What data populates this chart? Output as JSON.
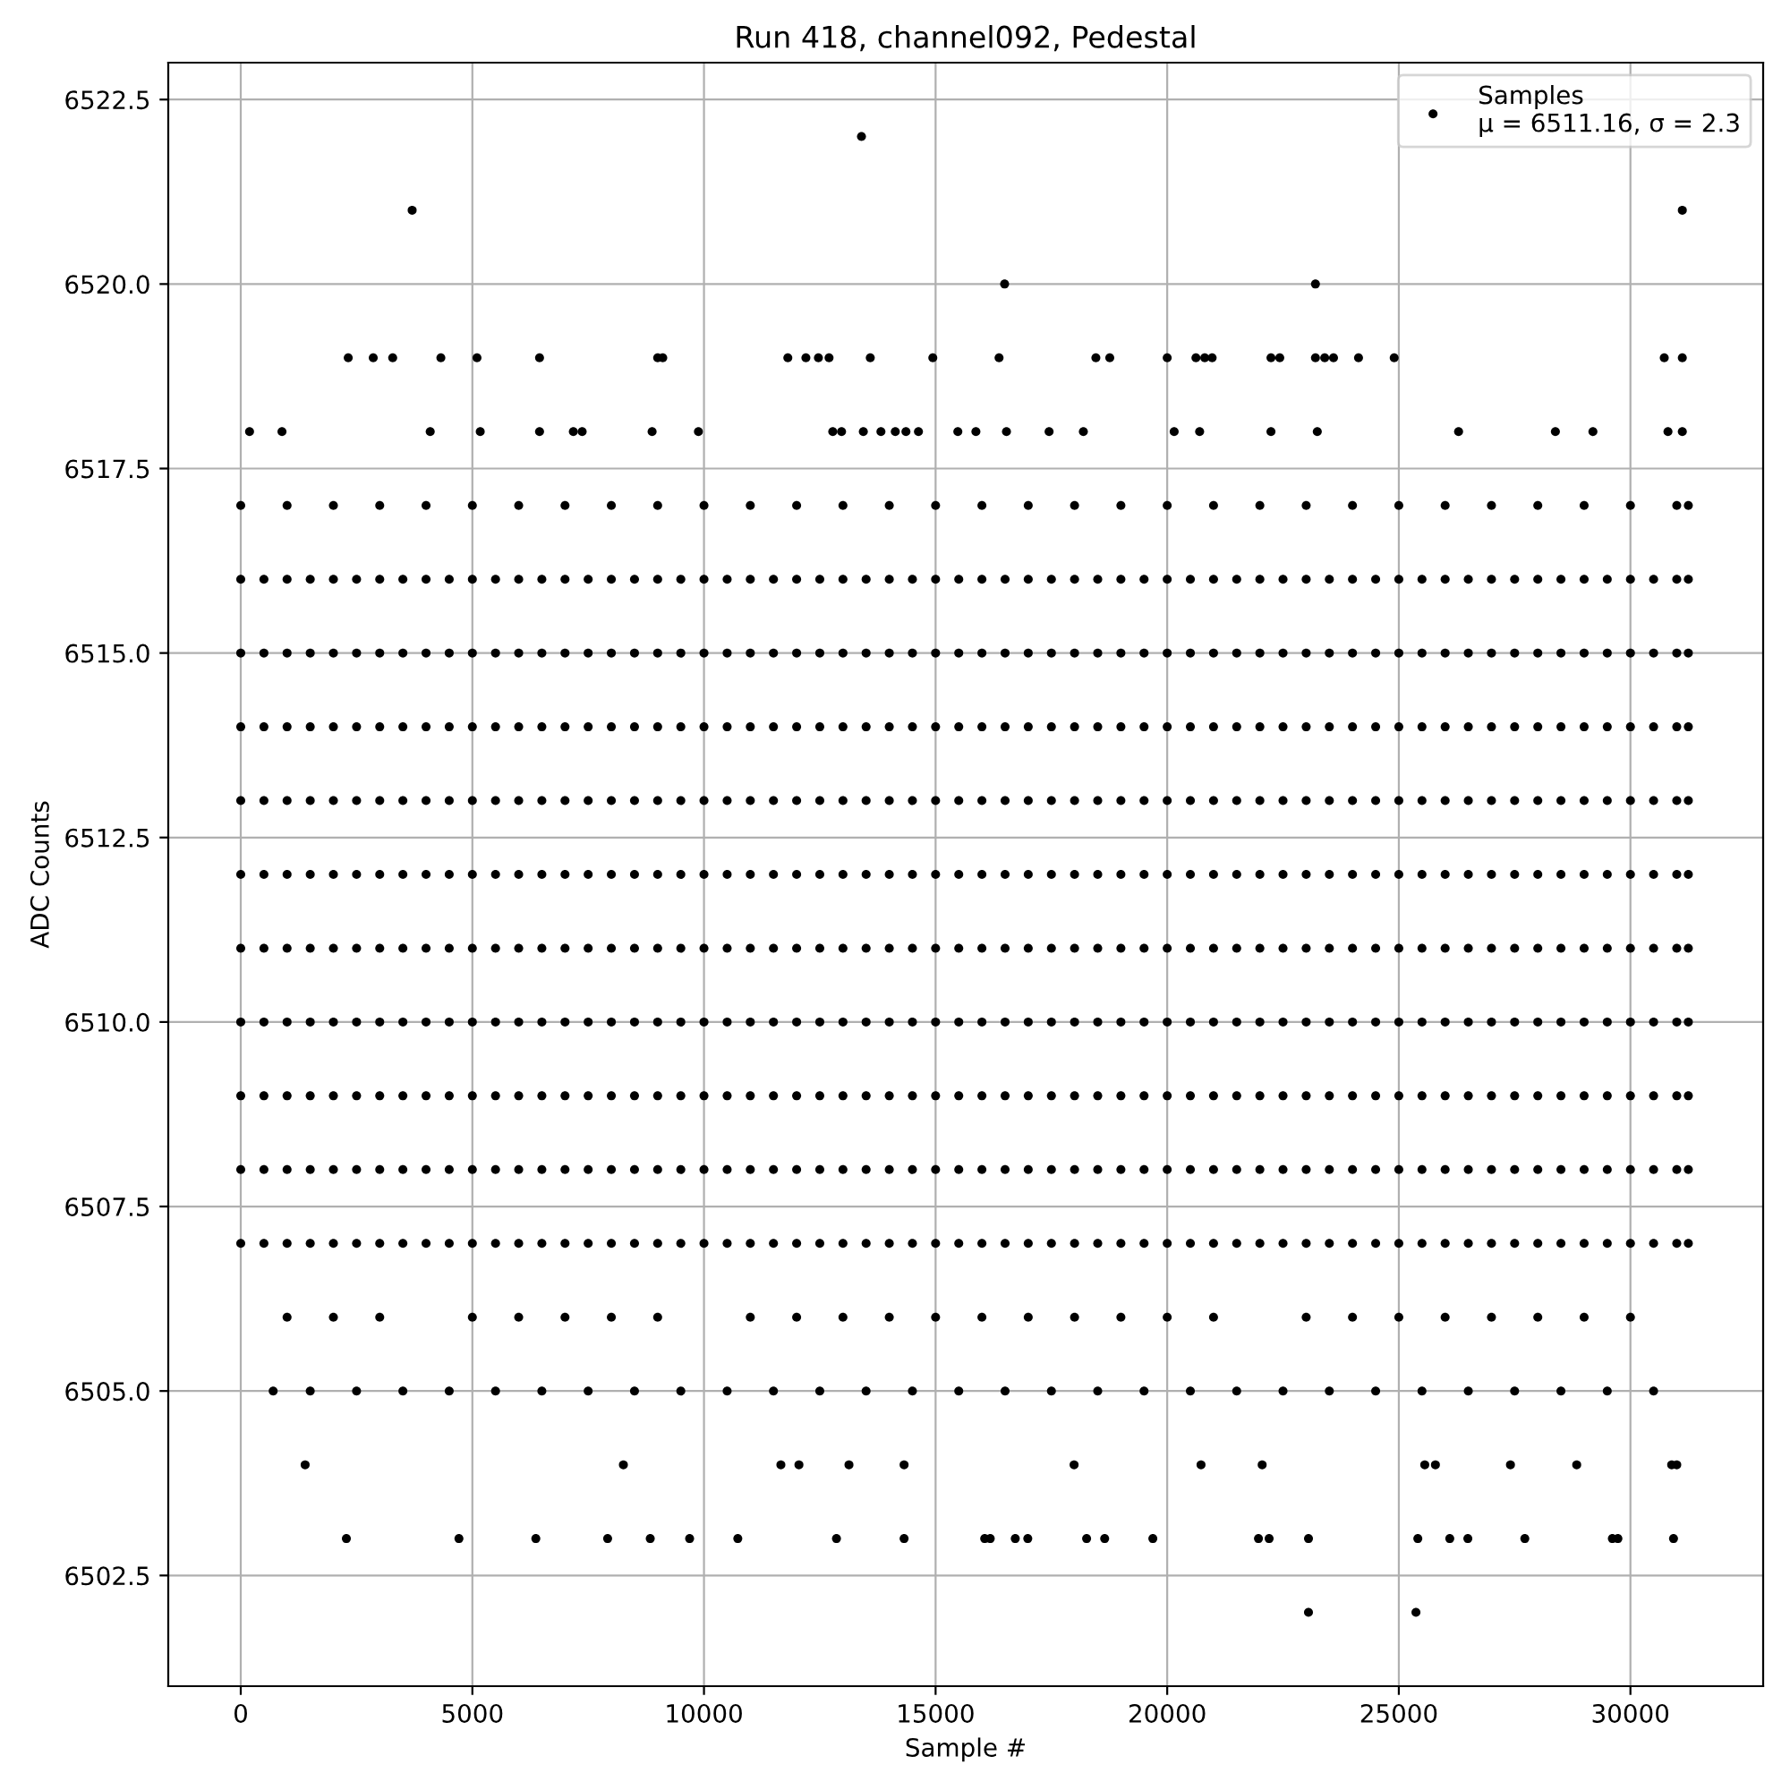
{
  "chart_data": {
    "type": "scatter",
    "title": "Run 418, channel092, Pedestal",
    "xlabel": "Sample #",
    "ylabel": "ADC Counts",
    "xlim": [
      -1565,
      32865
    ],
    "ylim": [
      6501.0,
      6523.0
    ],
    "xticks": [
      0,
      5000,
      10000,
      15000,
      20000,
      25000,
      30000
    ],
    "yticks": [
      6502.5,
      {
        "value": 6505,
        "label": "6505.0"
      },
      6507.5,
      {
        "value": 6510,
        "label": "6510.0"
      },
      6512.5,
      {
        "value": 6515,
        "label": "6515.0"
      },
      6517.5,
      {
        "value": 6520,
        "label": "6520.0"
      },
      6522.5
    ],
    "grid": true,
    "legend": "top right",
    "marker": "circle",
    "x": [
      0,
      500,
      1000,
      1500,
      2000,
      2500,
      3000,
      3500,
      4000,
      4500,
      5000,
      5500,
      6000,
      6500,
      7000,
      7500,
      8000,
      8500,
      9000,
      9500,
      10000,
      10500,
      11000,
      11500,
      12000,
      12500,
      13000,
      13500,
      14000,
      14500,
      15000,
      15500,
      16000,
      16500,
      17000,
      17500,
      18000,
      18500,
      19000,
      19500,
      20000,
      20500,
      21000,
      21500,
      22000,
      22500,
      23000,
      23500,
      24000,
      24500,
      25000,
      25500,
      26000,
      26500,
      27000,
      27500,
      28000,
      28500,
      29000,
      29500,
      30000,
      30500,
      31000,
      31250
    ],
    "series": [
      {
        "name": "Samples\nμ = 6511.16, σ = 2.3",
        "color": "#000000",
        "values": [
          6511,
          6511,
          6511,
          6511,
          6511,
          6511,
          6511,
          6511,
          6511,
          6511,
          6511,
          6511,
          6511,
          6511,
          6511,
          6511,
          6511,
          6511,
          6511,
          6511,
          6511,
          6511,
          6511,
          6511,
          6511,
          6511,
          6511,
          6511,
          6511,
          6511,
          6511,
          6511,
          6511,
          6511,
          6511,
          6511,
          6511,
          6511,
          6511,
          6511,
          6511,
          6511,
          6511,
          6511,
          6511,
          6511,
          6511,
          6511,
          6511,
          6511,
          6511,
          6511,
          6511,
          6511,
          6511,
          6511,
          6511,
          6511,
          6511,
          6511,
          6511,
          6511,
          6511,
          6511
        ]
      },
      {
        "color": "#000000",
        "values": [
          6507,
          6507,
          6507,
          6507,
          6507,
          6507,
          6507,
          6507,
          6507,
          6507,
          6507,
          6507,
          6507,
          6507,
          6507,
          6507,
          6507,
          6507,
          6507,
          6507,
          6507,
          6507,
          6507,
          6507,
          6507,
          6507,
          6507,
          6507,
          6507,
          6507,
          6507,
          6507,
          6507,
          6507,
          6507,
          6507,
          6507,
          6507,
          6507,
          6507,
          6507,
          6507,
          6507,
          6507,
          6507,
          6507,
          6507,
          6507,
          6507,
          6507,
          6507,
          6507,
          6507,
          6507,
          6507,
          6507,
          6507,
          6507,
          6507,
          6507,
          6507,
          6507,
          6507,
          6507
        ]
      },
      {
        "color": "#000000",
        "values": [
          6508,
          6508,
          6508,
          6508,
          6508,
          6508,
          6508,
          6508,
          6508,
          6508,
          6508,
          6508,
          6508,
          6508,
          6508,
          6508,
          6508,
          6508,
          6508,
          6508,
          6508,
          6508,
          6508,
          6508,
          6508,
          6508,
          6508,
          6508,
          6508,
          6508,
          6508,
          6508,
          6508,
          6508,
          6508,
          6508,
          6508,
          6508,
          6508,
          6508,
          6508,
          6508,
          6508,
          6508,
          6508,
          6508,
          6508,
          6508,
          6508,
          6508,
          6508,
          6508,
          6508,
          6508,
          6508,
          6508,
          6508,
          6508,
          6508,
          6508,
          6508,
          6508,
          6508,
          6508
        ]
      },
      {
        "color": "#000000",
        "values": [
          6509,
          6509,
          6509,
          6509,
          6509,
          6509,
          6509,
          6509,
          6509,
          6509,
          6509,
          6509,
          6509,
          6509,
          6509,
          6509,
          6509,
          6509,
          6509,
          6509,
          6509,
          6509,
          6509,
          6509,
          6509,
          6509,
          6509,
          6509,
          6509,
          6509,
          6509,
          6509,
          6509,
          6509,
          6509,
          6509,
          6509,
          6509,
          6509,
          6509,
          6509,
          6509,
          6509,
          6509,
          6509,
          6509,
          6509,
          6509,
          6509,
          6509,
          6509,
          6509,
          6509,
          6509,
          6509,
          6509,
          6509,
          6509,
          6509,
          6509,
          6509,
          6509,
          6509,
          6509
        ]
      },
      {
        "color": "#000000",
        "values": [
          6510,
          6510,
          6510,
          6510,
          6510,
          6510,
          6510,
          6510,
          6510,
          6510,
          6510,
          6510,
          6510,
          6510,
          6510,
          6510,
          6510,
          6510,
          6510,
          6510,
          6510,
          6510,
          6510,
          6510,
          6510,
          6510,
          6510,
          6510,
          6510,
          6510,
          6510,
          6510,
          6510,
          6510,
          6510,
          6510,
          6510,
          6510,
          6510,
          6510,
          6510,
          6510,
          6510,
          6510,
          6510,
          6510,
          6510,
          6510,
          6510,
          6510,
          6510,
          6510,
          6510,
          6510,
          6510,
          6510,
          6510,
          6510,
          6510,
          6510,
          6510,
          6510,
          6510,
          6510
        ]
      },
      {
        "color": "#000000",
        "values": [
          6512,
          6512,
          6512,
          6512,
          6512,
          6512,
          6512,
          6512,
          6512,
          6512,
          6512,
          6512,
          6512,
          6512,
          6512,
          6512,
          6512,
          6512,
          6512,
          6512,
          6512,
          6512,
          6512,
          6512,
          6512,
          6512,
          6512,
          6512,
          6512,
          6512,
          6512,
          6512,
          6512,
          6512,
          6512,
          6512,
          6512,
          6512,
          6512,
          6512,
          6512,
          6512,
          6512,
          6512,
          6512,
          6512,
          6512,
          6512,
          6512,
          6512,
          6512,
          6512,
          6512,
          6512,
          6512,
          6512,
          6512,
          6512,
          6512,
          6512,
          6512,
          6512,
          6512,
          6512
        ]
      },
      {
        "color": "#000000",
        "values": [
          6513,
          6513,
          6513,
          6513,
          6513,
          6513,
          6513,
          6513,
          6513,
          6513,
          6513,
          6513,
          6513,
          6513,
          6513,
          6513,
          6513,
          6513,
          6513,
          6513,
          6513,
          6513,
          6513,
          6513,
          6513,
          6513,
          6513,
          6513,
          6513,
          6513,
          6513,
          6513,
          6513,
          6513,
          6513,
          6513,
          6513,
          6513,
          6513,
          6513,
          6513,
          6513,
          6513,
          6513,
          6513,
          6513,
          6513,
          6513,
          6513,
          6513,
          6513,
          6513,
          6513,
          6513,
          6513,
          6513,
          6513,
          6513,
          6513,
          6513,
          6513,
          6513,
          6513,
          6513
        ]
      },
      {
        "color": "#000000",
        "values": [
          6514,
          6514,
          6514,
          6514,
          6514,
          6514,
          6514,
          6514,
          6514,
          6514,
          6514,
          6514,
          6514,
          6514,
          6514,
          6514,
          6514,
          6514,
          6514,
          6514,
          6514,
          6514,
          6514,
          6514,
          6514,
          6514,
          6514,
          6514,
          6514,
          6514,
          6514,
          6514,
          6514,
          6514,
          6514,
          6514,
          6514,
          6514,
          6514,
          6514,
          6514,
          6514,
          6514,
          6514,
          6514,
          6514,
          6514,
          6514,
          6514,
          6514,
          6514,
          6514,
          6514,
          6514,
          6514,
          6514,
          6514,
          6514,
          6514,
          6514,
          6514,
          6514,
          6514,
          6514
        ]
      },
      {
        "color": "#000000",
        "values": [
          6515,
          6515,
          6515,
          6515,
          6515,
          6515,
          6515,
          6515,
          6515,
          6515,
          6515,
          6515,
          6515,
          6515,
          6515,
          6515,
          6515,
          6515,
          6515,
          6515,
          6515,
          6515,
          6515,
          6515,
          6515,
          6515,
          6515,
          6515,
          6515,
          6515,
          6515,
          6515,
          6515,
          6515,
          6515,
          6515,
          6515,
          6515,
          6515,
          6515,
          6515,
          6515,
          6515,
          6515,
          6515,
          6515,
          6515,
          6515,
          6515,
          6515,
          6515,
          6515,
          6515,
          6515,
          6515,
          6515,
          6515,
          6515,
          6515,
          6515,
          6515,
          6515,
          6515,
          6515
        ]
      },
      {
        "color": "#000000",
        "values": [
          6516,
          6516,
          6516,
          6516,
          6516,
          6516,
          6516,
          6516,
          6516,
          6516,
          6516,
          6516,
          6516,
          6516,
          6516,
          6516,
          6516,
          6516,
          6516,
          6516,
          6516,
          6516,
          6516,
          6516,
          6516,
          6516,
          6516,
          6516,
          6516,
          6516,
          6516,
          6516,
          6516,
          6516,
          6516,
          6516,
          6516,
          6516,
          6516,
          6516,
          6516,
          6516,
          6516,
          6516,
          6516,
          6516,
          6516,
          6516,
          6516,
          6516,
          6516,
          6516,
          6516,
          6516,
          6516,
          6516,
          6516,
          6516,
          6516,
          6516,
          6516,
          6516,
          6516,
          6516
        ]
      },
      {
        "color": "#000000",
        "x": [
          0,
          1000,
          2000,
          3000,
          4000,
          5000,
          6000,
          7000,
          8000,
          9000,
          10000,
          11000,
          12000,
          13000,
          14000,
          15000,
          16000,
          17000,
          18000,
          19000,
          20000,
          21000,
          22000,
          23000,
          24000,
          25000,
          26000,
          27000,
          28000,
          29000,
          30000,
          31000,
          31250
        ],
        "values": [
          6517,
          6517,
          6517,
          6517,
          6517,
          6517,
          6517,
          6517,
          6517,
          6517,
          6517,
          6517,
          6517,
          6517,
          6517,
          6517,
          6517,
          6517,
          6517,
          6517,
          6517,
          6517,
          6517,
          6517,
          6517,
          6517,
          6517,
          6517,
          6517,
          6517,
          6517,
          6517,
          6517
        ]
      },
      {
        "color": "#000000",
        "x": [
          1000,
          2000,
          3000,
          5000,
          6000,
          7000,
          8000,
          9000,
          11000,
          12000,
          13000,
          14000,
          15000,
          16000,
          17000,
          18000,
          19000,
          20000,
          21000,
          23000,
          24000,
          25000,
          26000,
          27000,
          28000,
          29000,
          30000
        ],
        "values": [
          6506,
          6506,
          6506,
          6506,
          6506,
          6506,
          6506,
          6506,
          6506,
          6506,
          6506,
          6506,
          6506,
          6506,
          6506,
          6506,
          6506,
          6506,
          6506,
          6506,
          6506,
          6506,
          6506,
          6506,
          6506,
          6506,
          6506
        ]
      },
      {
        "color": "#000000",
        "x": [
          700,
          1500,
          2500,
          3500,
          4500,
          5500,
          6500,
          7500,
          8500,
          9500,
          10500,
          11500,
          12500,
          13500,
          14500,
          15500,
          16500,
          17500,
          18500,
          19500,
          20500,
          21500,
          22500,
          23500,
          24500,
          25500,
          26500,
          27500,
          28500,
          29500,
          30500
        ],
        "values": [
          6505,
          6505,
          6505,
          6505,
          6505,
          6505,
          6505,
          6505,
          6505,
          6505,
          6505,
          6505,
          6505,
          6505,
          6505,
          6505,
          6505,
          6505,
          6505,
          6505,
          6505,
          6505,
          6505,
          6505,
          6505,
          6505,
          6505,
          6505,
          6505,
          6505,
          6505
        ]
      },
      {
        "color": "#000000",
        "x": [
          13400,
          3700,
          31120,
          16490,
          23200,
          2320,
          2860,
          3280,
          4320,
          5100,
          6450,
          9000,
          9110,
          11810,
          12200,
          12470,
          12700,
          13590,
          14940,
          16370,
          18460,
          18760,
          20000,
          20620,
          20810,
          20970,
          22240,
          22430,
          23200,
          23400,
          23590,
          24130,
          24900,
          30730,
          31120,
          190,
          890,
          4090,
          5170,
          6450,
          7180,
          7370,
          8880,
          9880,
          12780,
          12970,
          13440,
          13820,
          14130,
          14360,
          14630,
          15480,
          15870,
          16530,
          17450,
          18190,
          20150,
          20700,
          22240,
          23240,
          26290,
          28380,
          29190,
          30810,
          31120
        ],
        "values": [
          6522,
          6521,
          6521,
          6520,
          6520,
          6519,
          6519,
          6519,
          6519,
          6519,
          6519,
          6519,
          6519,
          6519,
          6519,
          6519,
          6519,
          6519,
          6519,
          6519,
          6519,
          6519,
          6519,
          6519,
          6519,
          6519,
          6519,
          6519,
          6519,
          6519,
          6519,
          6519,
          6519,
          6519,
          6519,
          6518,
          6518,
          6518,
          6518,
          6518,
          6518,
          6518,
          6518,
          6518,
          6518,
          6518,
          6518,
          6518,
          6518,
          6518,
          6518,
          6518,
          6518,
          6518,
          6518,
          6518,
          6518,
          6518,
          6518,
          6518,
          6518,
          6518,
          6518,
          6518,
          6518
        ]
      },
      {
        "color": "#000000",
        "x": [
          1390,
          8260,
          11660,
          12050,
          13130,
          14320,
          17990,
          20690,
          20730,
          22050,
          25560,
          25790,
          27410,
          28840,
          30890,
          31000,
          2280,
          4710,
          6370,
          7920,
          8840,
          9690,
          10730,
          12860,
          14320,
          16060,
          16180,
          16720,
          16990,
          18260,
          18650,
          19690,
          21970,
          22200,
          23050,
          25410,
          26100,
          26490,
          27720,
          29610,
          29730,
          30930,
          23050,
          25370
        ],
        "values": [
          6504,
          6504,
          6504,
          6504,
          6504,
          6504,
          6504,
          null,
          6504,
          6504,
          6504,
          6504,
          6504,
          6504,
          6504,
          6504,
          6503,
          6503,
          6503,
          6503,
          6503,
          6503,
          6503,
          6503,
          6503,
          6503,
          6503,
          6503,
          6503,
          6503,
          6503,
          6503,
          6503,
          6503,
          6503,
          6503,
          6503,
          6503,
          6503,
          6503,
          6503,
          6503,
          6502,
          6502
        ]
      }
    ]
  }
}
